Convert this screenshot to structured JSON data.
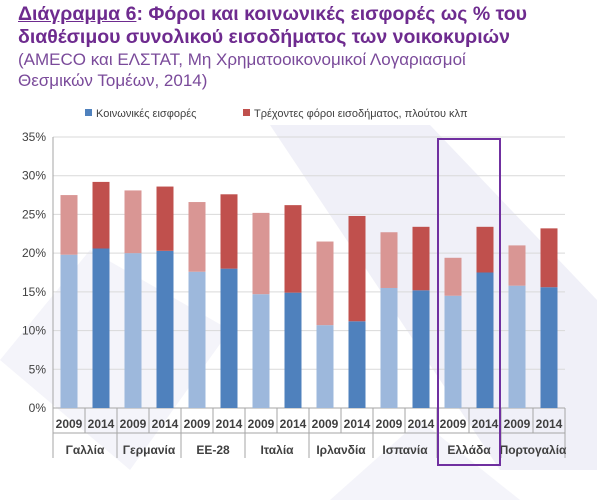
{
  "header": {
    "title_label": "Διάγραμμα 6",
    "title_rest": ": Φόροι και κοινωνικές εισφορές ως % του",
    "title_line2": "διαθέσιμου συνολικού εισοδήματος των νοικοκυριών",
    "subtitle_line1": "(AMECO και ΕΛΣΤΑΤ, Μη Χρηματοοικονομικοί Λογαριασμοί",
    "subtitle_line2": "Θεσμικών Τομέων, 2014)"
  },
  "colors": {
    "title": "#6e2b8f",
    "highlight_box": "#7030a0",
    "social_2009": "#9db8dc",
    "social_2014": "#4f81bd",
    "tax_2009": "#d99694",
    "tax_2014": "#c0504d"
  },
  "chart_data": {
    "type": "bar",
    "stacked": true,
    "ylim": [
      0,
      35
    ],
    "yticks": [
      "0%",
      "5%",
      "10%",
      "15%",
      "20%",
      "25%",
      "30%",
      "35%"
    ],
    "grid": true,
    "legend_position": "top",
    "categories": [
      "2009",
      "2014",
      "2009",
      "2014",
      "2009",
      "2014",
      "2009",
      "2014",
      "2009",
      "2014",
      "2009",
      "2014",
      "2009",
      "2014",
      "2009",
      "2014"
    ],
    "groups": [
      "Γαλλία",
      "Γερμανία",
      "ΕΕ-28",
      "Ιταλία",
      "Ιρλανδία",
      "Ισπανία",
      "Ελλάδα",
      "Πορτογαλία"
    ],
    "highlighted_group": "Ελλάδα",
    "series": [
      {
        "name": "Κοινωνικές εισφορές",
        "values": [
          19.8,
          20.6,
          20.0,
          20.3,
          17.6,
          18.0,
          14.7,
          14.9,
          10.7,
          11.2,
          15.5,
          15.2,
          14.5,
          17.5,
          15.8,
          15.6
        ]
      },
      {
        "name": "Τρέχοντες φόροι εισοδήματος, πλούτου κλπ",
        "values": [
          7.7,
          8.6,
          8.1,
          8.3,
          9.0,
          9.6,
          10.5,
          11.3,
          10.8,
          13.6,
          7.2,
          8.2,
          4.9,
          5.9,
          5.2,
          7.6
        ]
      }
    ]
  }
}
